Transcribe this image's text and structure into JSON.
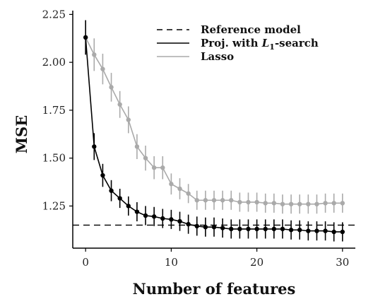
{
  "chart_data": {
    "type": "line",
    "xlabel": "Number of features",
    "ylabel": "MSE",
    "xlim": [
      -1.5,
      31.5
    ],
    "ylim": [
      1.03,
      2.27
    ],
    "xticks": [
      0,
      10,
      20,
      30
    ],
    "xtick_labels": [
      "0",
      "10",
      "20",
      "30"
    ],
    "yticks": [
      1.25,
      1.5,
      1.75,
      2.0,
      2.25
    ],
    "ytick_labels": [
      "1.25",
      "1.50",
      "1.75",
      "2.00",
      "2.25"
    ],
    "grid": false,
    "legend_position": "top-right",
    "reference": {
      "name": "Reference model",
      "value": 1.15,
      "color": "#000000",
      "style": "dashed"
    },
    "series": [
      {
        "name": "Proj. with L1-search",
        "color": "#000000",
        "x": [
          0,
          1,
          2,
          3,
          4,
          5,
          6,
          7,
          8,
          9,
          10,
          11,
          12,
          13,
          14,
          15,
          16,
          17,
          18,
          19,
          20,
          21,
          22,
          23,
          24,
          25,
          26,
          27,
          28,
          29,
          30
        ],
        "y": [
          2.13,
          1.56,
          1.41,
          1.33,
          1.29,
          1.25,
          1.22,
          1.2,
          1.195,
          1.185,
          1.18,
          1.17,
          1.155,
          1.145,
          1.14,
          1.14,
          1.135,
          1.13,
          1.13,
          1.13,
          1.13,
          1.13,
          1.13,
          1.13,
          1.125,
          1.125,
          1.12,
          1.12,
          1.12,
          1.115,
          1.115
        ],
        "err": [
          0.09,
          0.07,
          0.06,
          0.055,
          0.05,
          0.05,
          0.05,
          0.05,
          0.05,
          0.05,
          0.05,
          0.05,
          0.05,
          0.05,
          0.05,
          0.05,
          0.05,
          0.05,
          0.05,
          0.05,
          0.05,
          0.05,
          0.05,
          0.05,
          0.05,
          0.05,
          0.05,
          0.05,
          0.05,
          0.05,
          0.05
        ]
      },
      {
        "name": "Lasso",
        "color": "#aaaaaa",
        "x": [
          0,
          1,
          2,
          3,
          4,
          5,
          6,
          7,
          8,
          9,
          10,
          11,
          12,
          13,
          14,
          15,
          16,
          17,
          18,
          19,
          20,
          21,
          22,
          23,
          24,
          25,
          26,
          27,
          28,
          29,
          30
        ],
        "y": [
          2.13,
          2.04,
          1.965,
          1.87,
          1.78,
          1.7,
          1.56,
          1.5,
          1.45,
          1.45,
          1.365,
          1.34,
          1.315,
          1.28,
          1.28,
          1.28,
          1.28,
          1.28,
          1.27,
          1.27,
          1.27,
          1.265,
          1.265,
          1.26,
          1.26,
          1.26,
          1.26,
          1.26,
          1.265,
          1.265,
          1.265
        ],
        "err": [
          0.09,
          0.085,
          0.08,
          0.075,
          0.07,
          0.07,
          0.065,
          0.065,
          0.06,
          0.06,
          0.055,
          0.055,
          0.05,
          0.05,
          0.05,
          0.05,
          0.05,
          0.05,
          0.05,
          0.05,
          0.05,
          0.05,
          0.05,
          0.05,
          0.05,
          0.05,
          0.05,
          0.05,
          0.05,
          0.05,
          0.05
        ]
      }
    ],
    "legend": {
      "reference_label": "Reference model",
      "proj_prefix": "Proj. with ",
      "proj_math": "L",
      "proj_sub": "1",
      "proj_suffix": "-search",
      "lasso_label": "Lasso"
    }
  }
}
